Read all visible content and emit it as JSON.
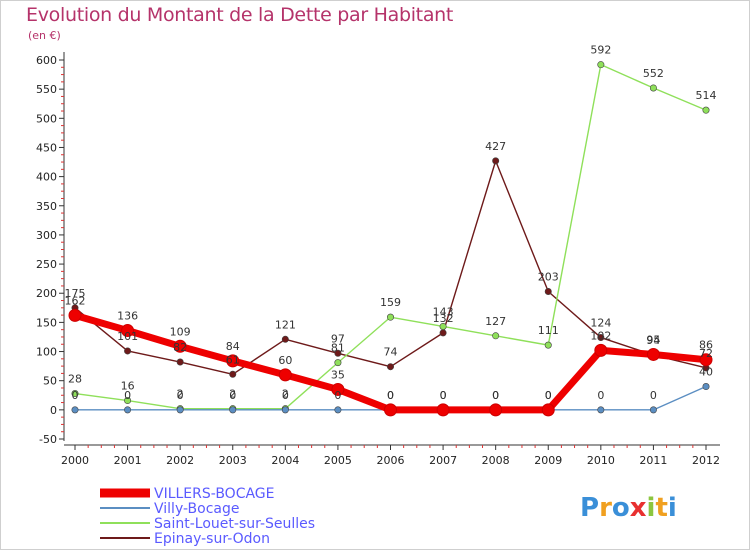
{
  "colors": {
    "title": "#b5336a",
    "axis": "#333333",
    "grid": "#cccccc",
    "legend_text": "#5a5aff"
  },
  "chart_data": {
    "type": "line",
    "title": "Evolution du Montant de la Dette par Habitant",
    "ylabel": "(en €)",
    "xlabel": "",
    "x": [
      "2000",
      "2001",
      "2002",
      "2003",
      "2004",
      "2005",
      "2006",
      "2007",
      "2008",
      "2009",
      "2010",
      "2011",
      "2012"
    ],
    "ylim": [
      -50,
      600
    ],
    "yticks": [
      -50,
      0,
      50,
      100,
      150,
      200,
      250,
      300,
      350,
      400,
      450,
      500,
      550,
      600
    ],
    "grid": false,
    "legend_position": "bottom-left",
    "series": [
      {
        "name": "Epinay-sur-Odon",
        "color": "#6e1a1a",
        "values": [
          175,
          101,
          82,
          61,
          121,
          97,
          74,
          132,
          427,
          203,
          124,
          94,
          72
        ],
        "labels": [
          "175",
          "101",
          "82",
          "61",
          "121",
          "97",
          "74",
          "132",
          "427",
          "203",
          "124",
          "94",
          "72"
        ]
      },
      {
        "name": "Saint-Louet-sur-Seulles",
        "color": "#8fe05a",
        "values": [
          28,
          16,
          2,
          2,
          2,
          81,
          159,
          143,
          127,
          111,
          592,
          552,
          514
        ],
        "labels": [
          "28",
          "16",
          "2",
          "2",
          "2",
          "81",
          "159",
          "143",
          "127",
          "111",
          "592",
          "552",
          "514"
        ]
      },
      {
        "name": "Villy-Bocage",
        "color": "#5b8ec2",
        "values": [
          0,
          0,
          0,
          0,
          0,
          0,
          0,
          0,
          0,
          0,
          0,
          0,
          40
        ],
        "labels": [
          "0",
          "0",
          "0",
          "0",
          "0",
          "0",
          "0",
          "0",
          "0",
          "0",
          "0",
          "0",
          "40"
        ]
      },
      {
        "name": "VILLERS-BOCAGE",
        "color": "#ee0000",
        "values": [
          162,
          136,
          109,
          84,
          60,
          35,
          0,
          0,
          0,
          0,
          102,
          95,
          86
        ],
        "labels": [
          "162",
          "136",
          "109",
          "84",
          "60",
          "35",
          "0",
          "0",
          "0",
          "0",
          "102",
          "95",
          "86"
        ]
      }
    ],
    "legend": [
      "VILLERS-BOCAGE",
      "Villy-Bocage",
      "Saint-Louet-sur-Seulles",
      "Epinay-sur-Odon"
    ]
  },
  "logo": {
    "text": "Proxiti"
  }
}
